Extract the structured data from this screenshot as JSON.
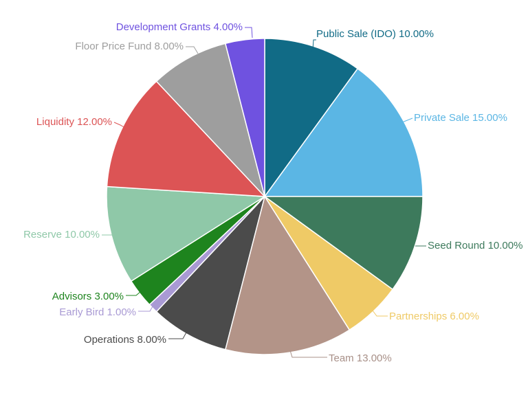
{
  "chart_data": {
    "type": "pie",
    "title": "",
    "slices": [
      {
        "name": "Public Sale (IDO)",
        "value": 10.0,
        "label": "Public Sale (IDO) 10.00%",
        "color": "#116b86",
        "label_color": "#116b86"
      },
      {
        "name": "Private Sale",
        "value": 15.0,
        "label": "Private Sale 15.00%",
        "color": "#5bb6e4",
        "label_color": "#5bb6e4"
      },
      {
        "name": "Seed Round",
        "value": 10.0,
        "label": "Seed Round 10.00%",
        "color": "#3d7a5c",
        "label_color": "#3d7a5c"
      },
      {
        "name": "Partnerships",
        "value": 6.0,
        "label": "Partnerships 6.00%",
        "color": "#efca66",
        "label_color": "#efca66"
      },
      {
        "name": "Team",
        "value": 13.0,
        "label": "Team 13.00%",
        "color": "#b39488",
        "label_color": "#a89088"
      },
      {
        "name": "Operations",
        "value": 8.0,
        "label": "Operations 8.00%",
        "color": "#4b4b4b",
        "label_color": "#4b4b4b"
      },
      {
        "name": "Early Bird",
        "value": 1.0,
        "label": "Early Bird 1.00%",
        "color": "#a99ad4",
        "label_color": "#a99ad4"
      },
      {
        "name": "Advisors",
        "value": 3.0,
        "label": "Advisors 3.00%",
        "color": "#1e841e",
        "label_color": "#1e841e"
      },
      {
        "name": "Reserve",
        "value": 10.0,
        "label": "Reserve 10.00%",
        "color": "#8fc8a8",
        "label_color": "#8fc8a8"
      },
      {
        "name": "Liquidity",
        "value": 12.0,
        "label": "Liquidity 12.00%",
        "color": "#dc5455",
        "label_color": "#dc5455"
      },
      {
        "name": "Floor Price Fund",
        "value": 8.0,
        "label": "Floor Price Fund 8.00%",
        "color": "#9e9e9e",
        "label_color": "#9e9e9e"
      },
      {
        "name": "Development Grants",
        "value": 4.0,
        "label": "Development Grants 4.00%",
        "color": "#6f52e0",
        "label_color": "#6f52e0"
      }
    ],
    "start_angle": "12 o'clock",
    "direction": "clockwise",
    "legend": "none"
  }
}
